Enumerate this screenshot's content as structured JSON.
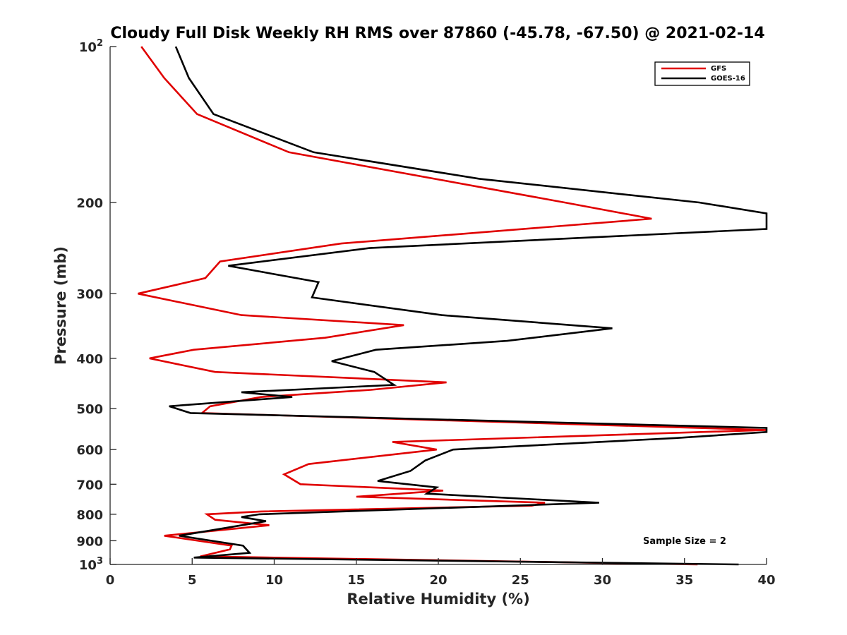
{
  "chart_data": {
    "type": "line",
    "title": "Cloudy Full Disk Weekly RH RMS over 87860 (-45.78, -67.50) @ 2021-02-14",
    "xlabel": "Relative Humidity (%)",
    "ylabel": "Pressure (mb)",
    "xlim": [
      0,
      40
    ],
    "ylim": [
      100,
      1000
    ],
    "y_scale": "log",
    "y_reversed": true,
    "grid": false,
    "legend_position": "top-right",
    "x_ticks": [
      "0",
      "5",
      "10",
      "15",
      "20",
      "25",
      "30",
      "35",
      "40"
    ],
    "y_ticks": [
      {
        "value": 100,
        "base": "10",
        "exp": "2"
      },
      {
        "value": 200,
        "label": "200"
      },
      {
        "value": 300,
        "label": "300"
      },
      {
        "value": 400,
        "label": "400"
      },
      {
        "value": 500,
        "label": "500"
      },
      {
        "value": 600,
        "label": "600"
      },
      {
        "value": 700,
        "label": "700"
      },
      {
        "value": 800,
        "label": "800"
      },
      {
        "value": 900,
        "label": "900"
      },
      {
        "value": 1000,
        "base": "10",
        "exp": "3"
      }
    ],
    "annotation": "Sample Size = 2",
    "series": [
      {
        "name": "GFS",
        "color": "#e00000",
        "points": [
          [
            1.9,
            100
          ],
          [
            3.3,
            115
          ],
          [
            5.3,
            135
          ],
          [
            10.9,
            160
          ],
          [
            27.7,
            200
          ],
          [
            33.0,
            215
          ],
          [
            14.1,
            240
          ],
          [
            6.7,
            260
          ],
          [
            5.8,
            280
          ],
          [
            1.7,
            300
          ],
          [
            8.0,
            330
          ],
          [
            17.9,
            345
          ],
          [
            13.1,
            365
          ],
          [
            5.1,
            385
          ],
          [
            2.4,
            400
          ],
          [
            6.4,
            425
          ],
          [
            20.5,
            445
          ],
          [
            15.9,
            460
          ],
          [
            9.2,
            475
          ],
          [
            6.1,
            495
          ],
          [
            5.6,
            510
          ],
          [
            40.0,
            550
          ],
          [
            17.2,
            580
          ],
          [
            19.9,
            600
          ],
          [
            12.1,
            640
          ],
          [
            10.6,
            670
          ],
          [
            11.6,
            700
          ],
          [
            20.3,
            720
          ],
          [
            15.0,
            740
          ],
          [
            26.5,
            760
          ],
          [
            25.7,
            770
          ],
          [
            9.2,
            790
          ],
          [
            5.9,
            800
          ],
          [
            6.4,
            820
          ],
          [
            9.7,
            840
          ],
          [
            3.3,
            880
          ],
          [
            7.4,
            920
          ],
          [
            7.3,
            935
          ],
          [
            5.5,
            965
          ],
          [
            35.8,
            1000
          ]
        ]
      },
      {
        "name": "GOES-16",
        "color": "#000000",
        "points": [
          [
            4.0,
            100
          ],
          [
            4.8,
            115
          ],
          [
            6.3,
            135
          ],
          [
            12.4,
            160
          ],
          [
            22.5,
            180
          ],
          [
            35.9,
            200
          ],
          [
            40.0,
            210
          ],
          [
            40.0,
            225
          ],
          [
            15.8,
            245
          ],
          [
            7.2,
            265
          ],
          [
            12.7,
            285
          ],
          [
            12.3,
            305
          ],
          [
            20.2,
            330
          ],
          [
            30.6,
            350
          ],
          [
            24.2,
            370
          ],
          [
            16.2,
            385
          ],
          [
            13.5,
            405
          ],
          [
            16.1,
            425
          ],
          [
            17.3,
            450
          ],
          [
            8.0,
            465
          ],
          [
            11.1,
            475
          ],
          [
            3.6,
            495
          ],
          [
            4.9,
            510
          ],
          [
            40.0,
            545
          ],
          [
            40.0,
            555
          ],
          [
            34.5,
            570
          ],
          [
            20.9,
            600
          ],
          [
            19.2,
            630
          ],
          [
            18.3,
            660
          ],
          [
            16.3,
            690
          ],
          [
            19.9,
            710
          ],
          [
            19.3,
            730
          ],
          [
            29.8,
            760
          ],
          [
            9.1,
            800
          ],
          [
            8.0,
            810
          ],
          [
            9.5,
            825
          ],
          [
            4.2,
            880
          ],
          [
            8.1,
            920
          ],
          [
            8.5,
            950
          ],
          [
            5.1,
            970
          ],
          [
            38.3,
            1000
          ]
        ]
      }
    ]
  }
}
